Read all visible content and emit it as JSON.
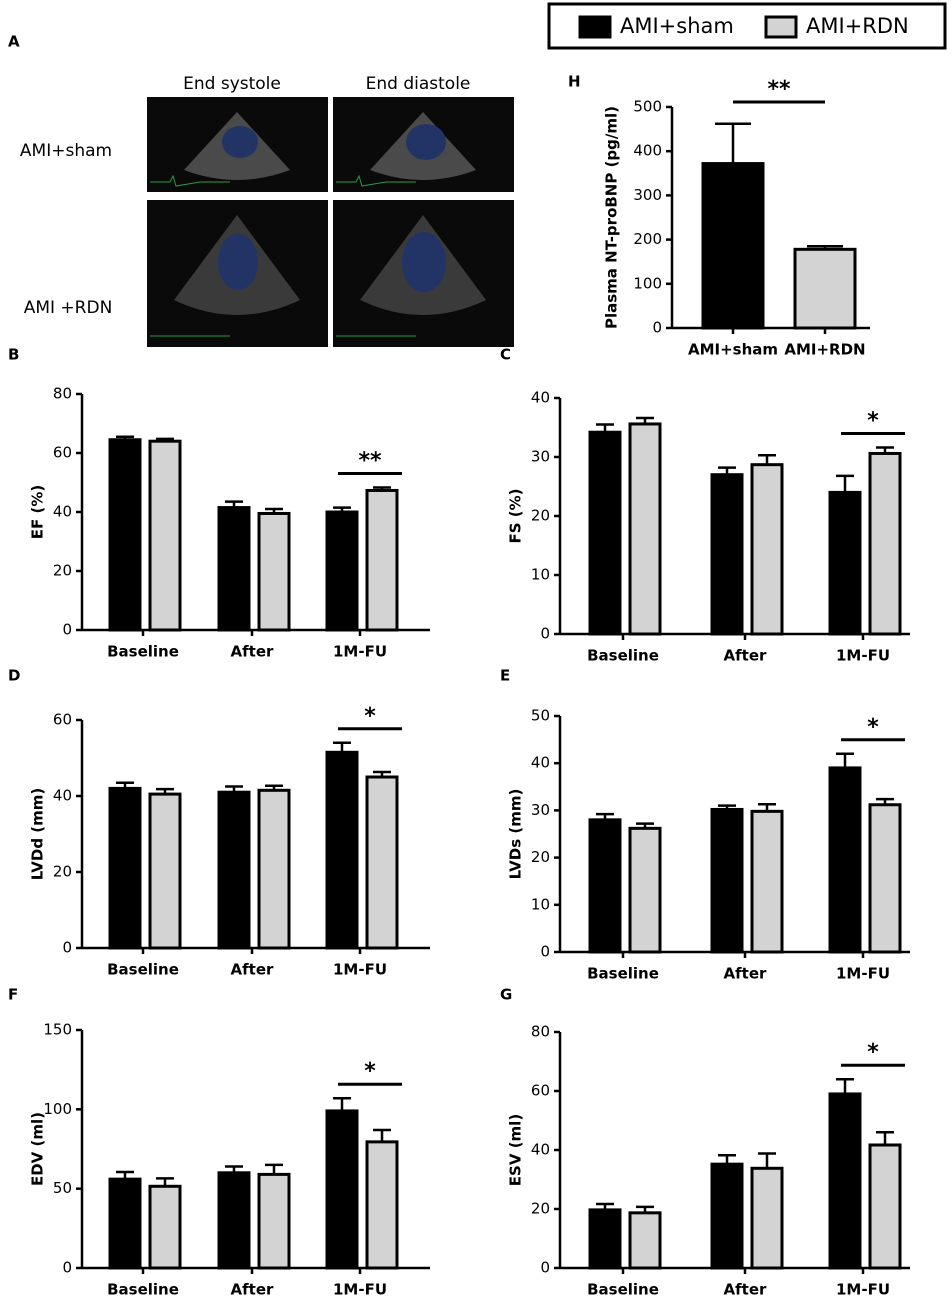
{
  "legend": [
    {
      "name": "AMI+sham",
      "color": "#000000"
    },
    {
      "name": "AMI+RDN",
      "color": "#d3d3d3"
    }
  ],
  "panel_a": {
    "label": "A",
    "columns": [
      "End systole",
      "End diastole"
    ],
    "rows": [
      "AMI+sham",
      "AMI +RDN"
    ]
  },
  "chart_data": [
    {
      "type": "bar",
      "label": "H",
      "ylabel": "Plasma NT-proBNP (pg/ml)",
      "categories": [
        "AMI+sham",
        "AMI+RDN"
      ],
      "values": [
        372,
        178
      ],
      "errors": [
        90,
        7
      ],
      "colors": [
        "#000000",
        "#d3d3d3"
      ],
      "ylim": [
        0,
        500
      ],
      "yticks": [
        0,
        100,
        200,
        300,
        400,
        500
      ],
      "annotation": "**"
    },
    {
      "type": "grouped-bar",
      "label": "B",
      "ylabel": "EF (%)",
      "categories": [
        "Baseline",
        "After",
        "1M-FU"
      ],
      "series": [
        {
          "color": "#000000",
          "values": [
            64.5,
            41.5,
            40
          ],
          "errors": [
            1,
            2,
            1.5
          ]
        },
        {
          "color": "#d3d3d3",
          "values": [
            64,
            39.5,
            47.3
          ],
          "errors": [
            0.8,
            1.5,
            1
          ]
        }
      ],
      "ylim": [
        0,
        80
      ],
      "yticks": [
        0,
        20,
        40,
        60,
        80
      ],
      "annotation": "**"
    },
    {
      "type": "grouped-bar",
      "label": "C",
      "ylabel": "FS (%)",
      "categories": [
        "Baseline",
        "After",
        "1M-FU"
      ],
      "series": [
        {
          "color": "#000000",
          "values": [
            34.2,
            27,
            24
          ],
          "errors": [
            1.3,
            1.2,
            2.8
          ]
        },
        {
          "color": "#d3d3d3",
          "values": [
            35.6,
            28.7,
            30.6
          ],
          "errors": [
            1,
            1.6,
            1
          ]
        }
      ],
      "ylim": [
        0,
        40
      ],
      "yticks": [
        0,
        10,
        20,
        30,
        40
      ],
      "annotation": "*"
    },
    {
      "type": "grouped-bar",
      "label": "D",
      "ylabel": "LVDd (mm)",
      "categories": [
        "Baseline",
        "After",
        "1M-FU"
      ],
      "series": [
        {
          "color": "#000000",
          "values": [
            42,
            41,
            51.5
          ],
          "errors": [
            1.5,
            1.5,
            2.5
          ]
        },
        {
          "color": "#d3d3d3",
          "values": [
            40.5,
            41.5,
            45
          ],
          "errors": [
            1.3,
            1.2,
            1.3
          ]
        }
      ],
      "ylim": [
        0,
        60
      ],
      "yticks": [
        0,
        20,
        40,
        60
      ],
      "annotation": "*"
    },
    {
      "type": "grouped-bar",
      "label": "E",
      "ylabel": "LVDs (mm)",
      "categories": [
        "Baseline",
        "After",
        "1M-FU"
      ],
      "series": [
        {
          "color": "#000000",
          "values": [
            28,
            30.2,
            39
          ],
          "errors": [
            1.2,
            0.8,
            3
          ]
        },
        {
          "color": "#d3d3d3",
          "values": [
            26.2,
            29.8,
            31.2
          ],
          "errors": [
            1,
            1.5,
            1.2
          ]
        }
      ],
      "ylim": [
        0,
        50
      ],
      "yticks": [
        0,
        10,
        20,
        30,
        40,
        50
      ],
      "annotation": "*"
    },
    {
      "type": "grouped-bar",
      "label": "F",
      "ylabel": "EDV (ml)",
      "categories": [
        "Baseline",
        "After",
        "1M-FU"
      ],
      "series": [
        {
          "color": "#000000",
          "values": [
            56,
            60,
            99
          ],
          "errors": [
            4.5,
            4,
            8
          ]
        },
        {
          "color": "#d3d3d3",
          "values": [
            51.5,
            59,
            79.5
          ],
          "errors": [
            5,
            6,
            7.5
          ]
        }
      ],
      "ylim": [
        0,
        150
      ],
      "yticks": [
        0,
        50,
        100,
        150
      ],
      "annotation": "*"
    },
    {
      "type": "grouped-bar",
      "label": "G",
      "ylabel": "ESV (ml)",
      "categories": [
        "Baseline",
        "After",
        "1M-FU"
      ],
      "series": [
        {
          "color": "#000000",
          "values": [
            19.7,
            35.2,
            59
          ],
          "errors": [
            2,
            3,
            5
          ]
        },
        {
          "color": "#d3d3d3",
          "values": [
            18.7,
            33.8,
            41.7
          ],
          "errors": [
            2,
            5,
            4.3
          ]
        }
      ],
      "ylim": [
        0,
        80
      ],
      "yticks": [
        0,
        20,
        40,
        60,
        80
      ],
      "annotation": "*"
    }
  ]
}
